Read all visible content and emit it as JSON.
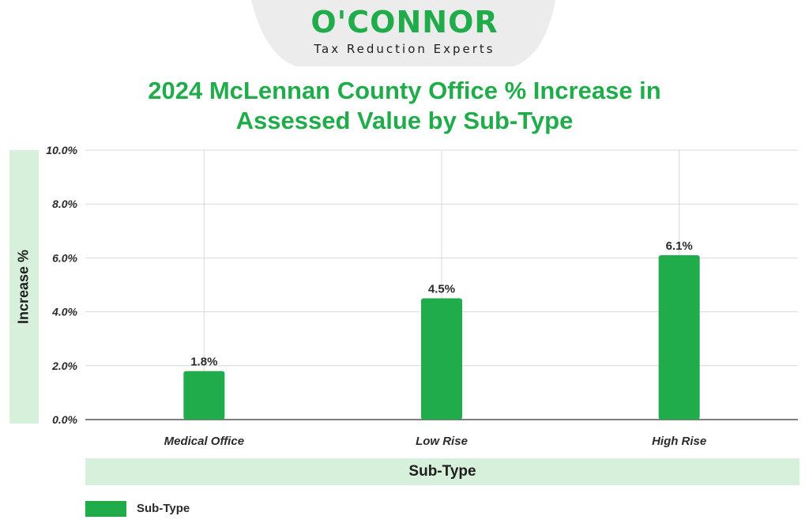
{
  "brand": {
    "name": "O'CONNOR",
    "tagline": "Tax Reduction Experts",
    "green": "#21ac4b",
    "light_green": "#d6f0db",
    "tab_color": "#ececec"
  },
  "chart_data": {
    "type": "bar",
    "title_lines": [
      "2024 McLennan County Office % Increase in",
      "Assessed Value by Sub-Type"
    ],
    "categories": [
      "Medical Office",
      "Low Rise",
      "High Rise"
    ],
    "series": [
      {
        "name": "Sub-Type",
        "values": [
          1.8,
          4.5,
          6.1
        ]
      }
    ],
    "data_labels": [
      "1.8%",
      "4.5%",
      "6.1%"
    ],
    "y_ticks": [
      "0.0%",
      "2.0%",
      "4.0%",
      "6.0%",
      "8.0%",
      "10.0%"
    ],
    "ylim": [
      0,
      10
    ],
    "ylabel": "Increase %",
    "xlabel": "Sub-Type",
    "legend_position": "bottom-left",
    "grid": true,
    "colors": {
      "bar": "#21ac4b",
      "grid": "#d9d9d9",
      "axis": "#555555",
      "text": "#2b2b2b"
    }
  }
}
